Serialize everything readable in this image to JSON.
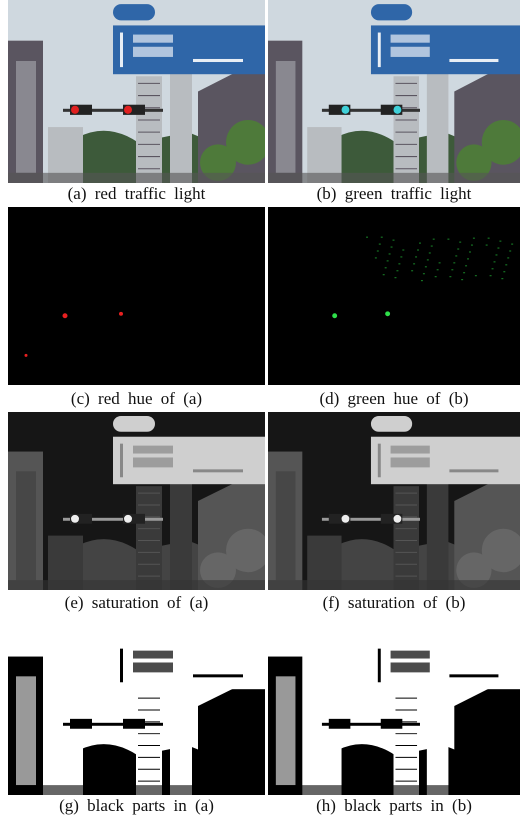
{
  "figure": {
    "panels": [
      {
        "caption": "(a) red traffic light"
      },
      {
        "caption": "(b) green traffic light"
      },
      {
        "caption": "(c) red hue of (a)"
      },
      {
        "caption": "(d) green hue of (b)"
      },
      {
        "caption": "(e) saturation of (a)"
      },
      {
        "caption": "(f) saturation of (b)"
      },
      {
        "caption": "(g) black parts in (a)"
      },
      {
        "caption": "(h) black parts in (b)"
      }
    ]
  }
}
